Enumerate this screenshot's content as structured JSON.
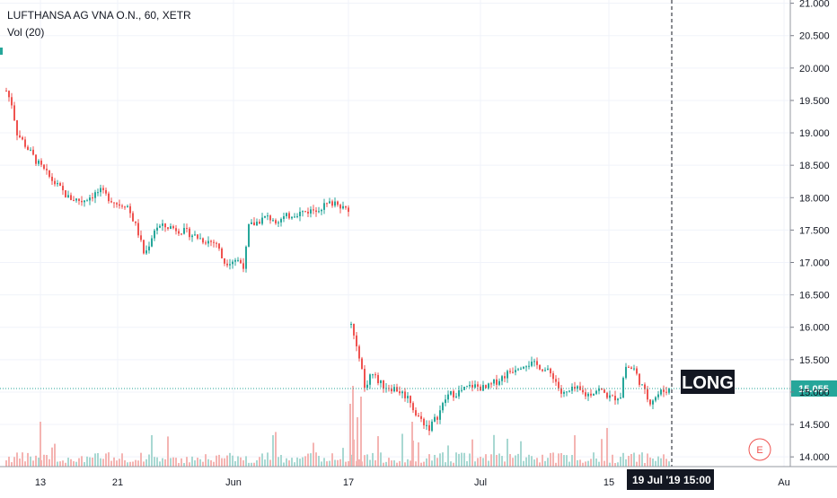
{
  "header": {
    "symbol_line": "LUFTHANSA AG VNA O.N., 60, XETR",
    "indicator_line": "Vol (20)"
  },
  "colors": {
    "up": "#26a69a",
    "down": "#ef5350",
    "vol_up": "#a8d8d2",
    "vol_down": "#f4b4b2",
    "grid": "#f0f3fa",
    "price_line": "#26a69a",
    "axis_text": "#131722",
    "tag_bg": "#131722",
    "price_tag_bg": "#26a69a"
  },
  "chart_data": {
    "type": "candlestick",
    "title": "LUFTHANSA AG VNA O.N., 60, XETR",
    "indicator": "Vol (20)",
    "interval": "60",
    "y_ticks": [
      "21.000",
      "20.500",
      "20.000",
      "19.500",
      "19.000",
      "18.500",
      "18.000",
      "17.500",
      "17.000",
      "16.500",
      "16.000",
      "15.500",
      "15.000",
      "14.500",
      "14.000"
    ],
    "ylim": [
      13.85,
      21.05
    ],
    "x_tick_labels": [
      "13",
      "21",
      "Jun",
      "17",
      "Jul",
      "15",
      "Au"
    ],
    "current_price": "15.055",
    "crosshair_date": "19 Jul '19",
    "crosshair_time": "15:00",
    "annotation": "LONG",
    "event_marker": "E",
    "grid": true,
    "series": [
      {
        "path": [
          [
            19.65,
            6
          ],
          [
            19.45,
            12
          ],
          [
            19.0,
            18
          ],
          [
            18.55,
            40
          ],
          [
            18.3,
            55
          ],
          [
            18.0,
            75
          ],
          [
            17.95,
            90
          ],
          [
            18.1,
            110
          ],
          [
            17.9,
            130
          ],
          [
            17.9,
            140
          ],
          [
            17.5,
            152
          ],
          [
            17.1,
            160
          ],
          [
            17.55,
            172
          ],
          [
            17.55,
            188
          ],
          [
            17.45,
            210
          ],
          [
            17.35,
            225
          ],
          [
            17.3,
            240
          ],
          [
            17.0,
            248
          ],
          [
            17.05,
            262
          ],
          [
            16.95,
            271
          ],
          [
            17.55,
            276
          ],
          [
            17.7,
            295
          ],
          [
            17.65,
            310
          ],
          [
            17.75,
            325
          ],
          [
            17.8,
            345
          ],
          [
            17.9,
            365
          ],
          [
            17.95,
            374
          ],
          [
            17.75,
            388
          ]
        ]
      },
      {
        "path": [
          [
            16.05,
            390
          ],
          [
            15.65,
            396
          ],
          [
            15.55,
            400
          ],
          [
            15.05,
            405
          ],
          [
            15.3,
            412
          ],
          [
            15.1,
            425
          ],
          [
            15.05,
            440
          ],
          [
            14.9,
            455
          ],
          [
            14.65,
            462
          ],
          [
            14.45,
            477
          ],
          [
            14.65,
            487
          ],
          [
            14.95,
            497
          ],
          [
            15.0,
            510
          ],
          [
            15.1,
            525
          ],
          [
            15.05,
            540
          ],
          [
            15.25,
            560
          ],
          [
            15.4,
            575
          ],
          [
            15.45,
            585
          ],
          [
            15.4,
            600
          ],
          [
            15.25,
            615
          ],
          [
            14.95,
            625
          ],
          [
            15.05,
            640
          ],
          [
            14.95,
            652
          ],
          [
            15.05,
            665
          ],
          [
            14.9,
            680
          ],
          [
            14.95,
            690
          ],
          [
            15.4,
            695
          ],
          [
            15.35,
            705
          ],
          [
            15.05,
            715
          ],
          [
            14.85,
            722
          ],
          [
            15.0,
            735
          ],
          [
            15.05,
            745
          ]
        ]
      }
    ]
  }
}
